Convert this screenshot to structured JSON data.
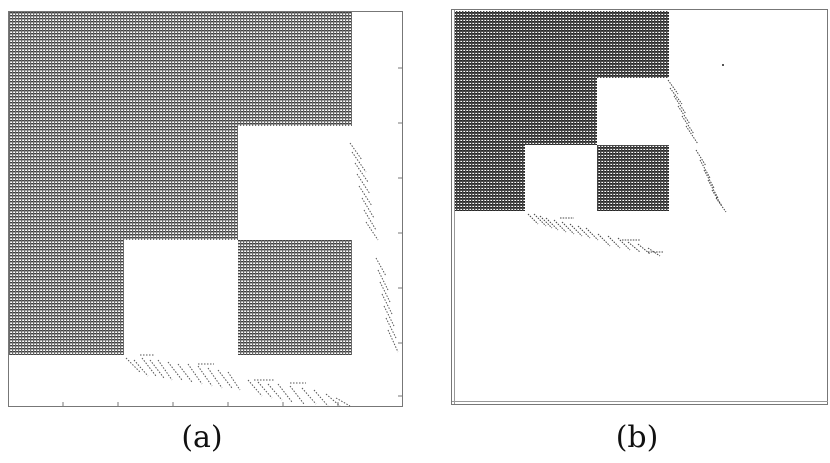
{
  "panels": [
    {
      "id": "a",
      "label": "(a)"
    },
    {
      "id": "b",
      "label": "(b)"
    }
  ],
  "colors": {
    "frame": "#666666",
    "dense_ink": "#333333",
    "sparse_ink": "#555555",
    "background": "#ffffff"
  }
}
